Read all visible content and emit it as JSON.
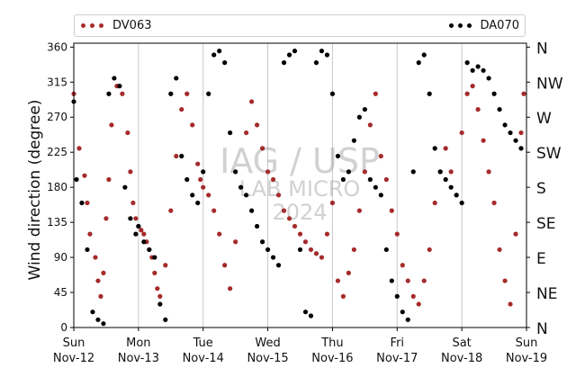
{
  "chart_data": {
    "type": "scatter",
    "ylabel": "Wind direction (degree)",
    "ylim": [
      0,
      365
    ],
    "xlim": [
      "2023-11-12 00:00",
      "2023-11-19 00:00"
    ],
    "y_ticks": [
      0,
      45,
      90,
      135,
      180,
      225,
      270,
      315,
      360
    ],
    "y_tick_labels": [
      "0",
      "45",
      "90",
      "135",
      "180",
      "225",
      "270",
      "315",
      "360"
    ],
    "x_ticks": [
      {
        "day": "Sun",
        "date": "Nov-12"
      },
      {
        "day": "Mon",
        "date": "Nov-13"
      },
      {
        "day": "Tue",
        "date": "Nov-14"
      },
      {
        "day": "Wed",
        "date": "Nov-15"
      },
      {
        "day": "Thu",
        "date": "Nov-16"
      },
      {
        "day": "Fri",
        "date": "Nov-17"
      },
      {
        "day": "Sat",
        "date": "Nov-18"
      },
      {
        "day": "Sun",
        "date": "Nov-19"
      }
    ],
    "right_axis_labels": [
      "N",
      "NE",
      "E",
      "SE",
      "S",
      "SW",
      "W",
      "NW",
      "N"
    ],
    "grid": "vertical",
    "legend_placement": "top",
    "watermark": [
      "IAG / USP",
      "LAB MICRO",
      "2024"
    ],
    "series": [
      {
        "name": "DV063",
        "color": "#a52a2a",
        "x_hours": [
          0,
          2,
          4,
          5,
          6,
          8,
          9,
          10,
          11,
          12,
          13,
          14,
          16,
          18,
          20,
          21,
          22,
          23,
          24,
          25,
          26,
          27,
          28,
          29,
          30,
          31,
          32,
          34,
          36,
          38,
          40,
          42,
          44,
          46,
          47,
          48,
          50,
          52,
          54,
          56,
          58,
          60,
          62,
          64,
          66,
          68,
          70,
          72,
          74,
          76,
          78,
          80,
          82,
          84,
          86,
          88,
          90,
          92,
          94,
          96,
          98,
          100,
          102,
          104,
          106,
          108,
          110,
          112,
          114,
          116,
          118,
          120,
          122,
          124,
          126,
          128,
          130,
          132,
          134,
          136,
          138,
          140,
          142,
          144,
          146,
          148,
          150,
          152,
          154,
          156,
          158,
          160,
          162,
          164,
          166,
          167
        ],
        "y": [
          300,
          230,
          195,
          160,
          120,
          90,
          60,
          40,
          70,
          140,
          190,
          260,
          310,
          300,
          250,
          200,
          160,
          140,
          130,
          125,
          120,
          110,
          100,
          90,
          70,
          50,
          40,
          80,
          150,
          220,
          280,
          300,
          260,
          210,
          190,
          180,
          170,
          150,
          120,
          80,
          50,
          110,
          180,
          250,
          290,
          260,
          230,
          200,
          190,
          170,
          150,
          140,
          130,
          120,
          110,
          100,
          95,
          90,
          120,
          160,
          60,
          40,
          70,
          100,
          150,
          200,
          260,
          300,
          220,
          190,
          150,
          120,
          80,
          60,
          40,
          30,
          60,
          100,
          160,
          200,
          230,
          200,
          170,
          250,
          300,
          310,
          280,
          240,
          200,
          160,
          100,
          60,
          30,
          120,
          250,
          300
        ]
      },
      {
        "name": "DA070",
        "color": "#000000",
        "x_hours": [
          0,
          1,
          3,
          5,
          7,
          9,
          11,
          13,
          15,
          17,
          19,
          21,
          23,
          24,
          26,
          28,
          30,
          32,
          34,
          36,
          38,
          40,
          42,
          44,
          46,
          48,
          50,
          52,
          54,
          56,
          58,
          60,
          62,
          64,
          66,
          68,
          70,
          72,
          74,
          76,
          78,
          80,
          82,
          84,
          86,
          88,
          90,
          92,
          94,
          96,
          98,
          100,
          102,
          104,
          106,
          108,
          110,
          112,
          114,
          116,
          118,
          120,
          122,
          124,
          126,
          128,
          130,
          132,
          134,
          136,
          138,
          140,
          142,
          144,
          146,
          148,
          150,
          152,
          154,
          156,
          158,
          160,
          162,
          164,
          166
        ],
        "y": [
          290,
          190,
          160,
          100,
          20,
          10,
          5,
          300,
          320,
          310,
          180,
          140,
          120,
          130,
          110,
          100,
          90,
          30,
          10,
          300,
          320,
          220,
          190,
          170,
          160,
          200,
          300,
          350,
          355,
          340,
          250,
          200,
          180,
          170,
          150,
          130,
          110,
          100,
          90,
          80,
          340,
          350,
          355,
          100,
          20,
          15,
          340,
          355,
          350,
          300,
          220,
          190,
          200,
          240,
          270,
          280,
          190,
          180,
          170,
          100,
          60,
          40,
          20,
          10,
          200,
          340,
          350,
          300,
          230,
          200,
          190,
          180,
          170,
          160,
          340,
          330,
          335,
          330,
          320,
          300,
          280,
          260,
          250,
          240,
          230
        ]
      }
    ]
  }
}
